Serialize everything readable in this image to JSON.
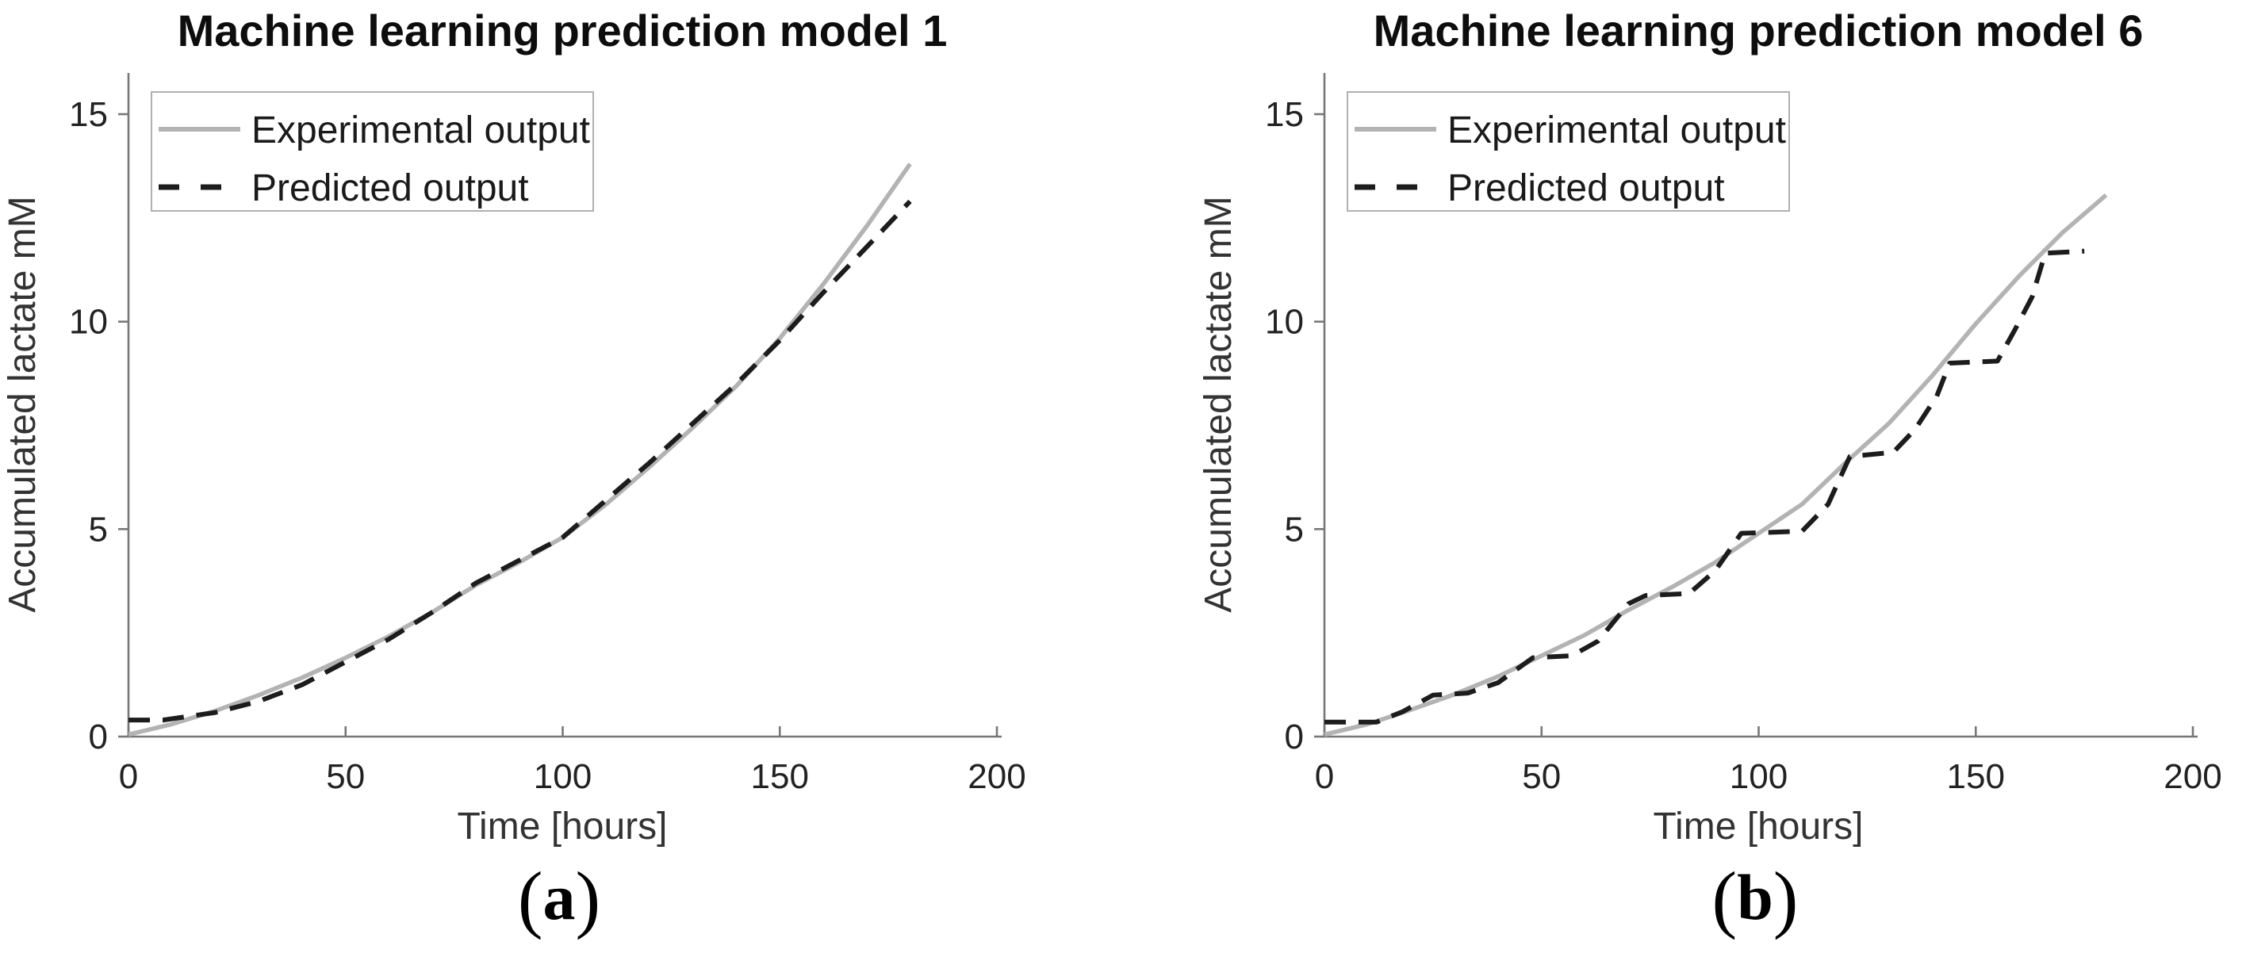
{
  "figure": {
    "background": "#ffffff",
    "description": "Two side-by-side MATLAB-style line charts comparing experimental and predicted accumulated lactate over time"
  },
  "styles": {
    "axis_color": "#777777",
    "tick_label_color": "#222222",
    "title_color": "#0d0d0d",
    "axis_label_color": "#333333",
    "legend_border_color": "#b0b0b0",
    "legend_background": "#ffffff",
    "experimental_color": "#b3b3b3",
    "predicted_color": "#1c1c1c"
  },
  "chart_data": [
    {
      "id": "a",
      "type": "line",
      "title": "Machine learning prediction model 1",
      "xlabel": "Time [hours]",
      "ylabel": "Accumulated lactate mM",
      "caption": "(a)",
      "caption_open": "(",
      "caption_letter": "a",
      "caption_close": ")",
      "xlim": [
        0,
        200
      ],
      "ylim": [
        0,
        15
      ],
      "xticks": [
        0,
        50,
        100,
        150,
        200
      ],
      "yticks": [
        0,
        5,
        10,
        15
      ],
      "grid": false,
      "legend_position": "upper-left",
      "series": [
        {
          "name": "Experimental output",
          "style": "solid",
          "color": "#b3b3b3",
          "width": 5.5,
          "points": [
            [
              0,
              0.05
            ],
            [
              10,
              0.3
            ],
            [
              20,
              0.62
            ],
            [
              30,
              1.0
            ],
            [
              40,
              1.42
            ],
            [
              50,
              1.9
            ],
            [
              60,
              2.42
            ],
            [
              70,
              3.0
            ],
            [
              80,
              3.65
            ],
            [
              90,
              4.2
            ],
            [
              100,
              4.8
            ],
            [
              110,
              5.6
            ],
            [
              120,
              6.5
            ],
            [
              130,
              7.45
            ],
            [
              140,
              8.45
            ],
            [
              150,
              9.6
            ],
            [
              160,
              10.9
            ],
            [
              170,
              12.3
            ],
            [
              180,
              13.8
            ]
          ]
        },
        {
          "name": "Predicted output",
          "style": "dashed",
          "color": "#1c1c1c",
          "width": 6,
          "points": [
            [
              0,
              0.4
            ],
            [
              8,
              0.4
            ],
            [
              20,
              0.58
            ],
            [
              30,
              0.85
            ],
            [
              40,
              1.25
            ],
            [
              50,
              1.8
            ],
            [
              60,
              2.35
            ],
            [
              70,
              3.0
            ],
            [
              80,
              3.7
            ],
            [
              90,
              4.25
            ],
            [
              100,
              4.8
            ],
            [
              110,
              5.7
            ],
            [
              120,
              6.6
            ],
            [
              130,
              7.55
            ],
            [
              140,
              8.5
            ],
            [
              150,
              9.55
            ],
            [
              160,
              10.7
            ],
            [
              170,
              11.8
            ],
            [
              180,
              12.9
            ]
          ]
        }
      ]
    },
    {
      "id": "b",
      "type": "line",
      "title": "Machine learning prediction model 6",
      "xlabel": "Time [hours]",
      "ylabel": "Accumulated lactate mM",
      "caption": "(b)",
      "caption_open": "(",
      "caption_letter": "b",
      "caption_close": ")",
      "xlim": [
        0,
        200
      ],
      "ylim": [
        0,
        15
      ],
      "xticks": [
        0,
        50,
        100,
        150,
        200
      ],
      "yticks": [
        0,
        5,
        10,
        15
      ],
      "grid": false,
      "legend_position": "upper-left",
      "series": [
        {
          "name": "Experimental output",
          "style": "solid",
          "color": "#b3b3b3",
          "width": 5.5,
          "points": [
            [
              0,
              0.05
            ],
            [
              10,
              0.3
            ],
            [
              20,
              0.65
            ],
            [
              30,
              1.02
            ],
            [
              40,
              1.45
            ],
            [
              50,
              1.95
            ],
            [
              60,
              2.45
            ],
            [
              70,
              3.05
            ],
            [
              80,
              3.6
            ],
            [
              90,
              4.2
            ],
            [
              100,
              4.9
            ],
            [
              110,
              5.6
            ],
            [
              120,
              6.6
            ],
            [
              130,
              7.55
            ],
            [
              140,
              8.7
            ],
            [
              150,
              9.95
            ],
            [
              160,
              11.1
            ],
            [
              170,
              12.15
            ],
            [
              180,
              13.05
            ]
          ]
        },
        {
          "name": "Predicted output",
          "style": "dashed",
          "color": "#1c1c1c",
          "width": 6,
          "points": [
            [
              0,
              0.35
            ],
            [
              12,
              0.35
            ],
            [
              18,
              0.6
            ],
            [
              25,
              1.0
            ],
            [
              33,
              1.05
            ],
            [
              40,
              1.3
            ],
            [
              48,
              1.9
            ],
            [
              57,
              1.95
            ],
            [
              63,
              2.3
            ],
            [
              70,
              3.2
            ],
            [
              74,
              3.4
            ],
            [
              84,
              3.45
            ],
            [
              90,
              4.0
            ],
            [
              96,
              4.9
            ],
            [
              110,
              4.95
            ],
            [
              116,
              5.6
            ],
            [
              121,
              6.75
            ],
            [
              131,
              6.85
            ],
            [
              136,
              7.4
            ],
            [
              141,
              8.2
            ],
            [
              144,
              9.0
            ],
            [
              155,
              9.05
            ],
            [
              159,
              9.8
            ],
            [
              163,
              10.6
            ],
            [
              166,
              11.65
            ],
            [
              175,
              11.7
            ]
          ]
        }
      ]
    }
  ]
}
